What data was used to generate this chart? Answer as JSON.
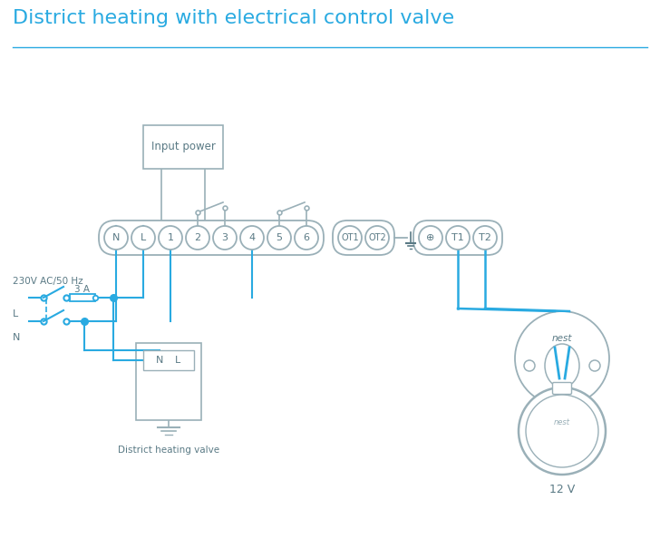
{
  "title": "District heating with electrical control valve",
  "title_color": "#29aae1",
  "title_fontsize": 16,
  "bg_color": "#ffffff",
  "line_color": "#29aae1",
  "gray_color": "#9ab0b8",
  "dark_gray": "#5a7a85",
  "input_power_label": "Input power",
  "district_valve_label": "District heating valve",
  "fuse_label": "3 A",
  "voltage_label": "230V AC/50 Hz",
  "nest_label_12v": "12 V",
  "figw": 7.28,
  "figh": 5.94,
  "dpi": 100
}
